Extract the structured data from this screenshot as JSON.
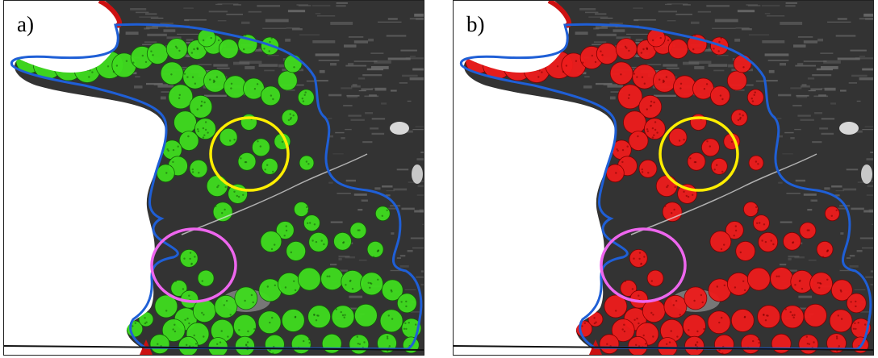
{
  "figure": {
    "panels": [
      {
        "label": "a)",
        "cluster_color": "#3fdc1e",
        "cluster_outline": "#145a0a"
      },
      {
        "label": "b)",
        "cluster_color": "#ee1c1c",
        "cluster_outline": "#7a0000"
      }
    ],
    "boundary_color": "#1f5fd6",
    "highlight_colors": {
      "upper_circle": "#ffee00",
      "lower_circle": "#ee66ee"
    },
    "background": {
      "land": "#333333",
      "water": "#ffffff",
      "terrain": "#6a6a6a",
      "shore": "#cc1111"
    }
  }
}
